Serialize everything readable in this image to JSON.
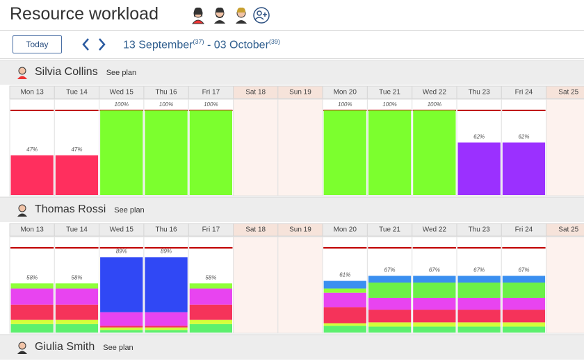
{
  "header": {
    "title": "Resource workload"
  },
  "toolbar": {
    "today": "Today",
    "range_start": "13 September",
    "start_week": "(37)",
    "separator": " - ",
    "range_end": "03 October",
    "end_week": "(39)"
  },
  "capacity": 100,
  "days": [
    "Mon 13",
    "Tue 14",
    "Wed 15",
    "Thu 16",
    "Fri 17",
    "Sat 18",
    "Sun 19",
    "Mon 20",
    "Tue 21",
    "Wed 22",
    "Thu 23",
    "Fri 24",
    "Sat 25"
  ],
  "weekend": [
    false,
    false,
    false,
    false,
    false,
    true,
    true,
    false,
    false,
    false,
    false,
    false,
    true
  ],
  "resources": [
    {
      "name": "Silvia Collins",
      "link": "See plan",
      "loads": [
        {
          "value": 47,
          "label": "47%",
          "segments": [
            {
              "value": 47,
              "color": "#ff2f5e"
            }
          ]
        },
        {
          "value": 47,
          "label": "47%",
          "segments": [
            {
              "value": 47,
              "color": "#ff2f5e"
            }
          ]
        },
        {
          "value": 100,
          "label": "100%",
          "segments": [
            {
              "value": 100,
              "color": "#7cff2e"
            }
          ]
        },
        {
          "value": 100,
          "label": "100%",
          "segments": [
            {
              "value": 100,
              "color": "#7cff2e"
            }
          ]
        },
        {
          "value": 100,
          "label": "100%",
          "segments": [
            {
              "value": 100,
              "color": "#7cff2e"
            }
          ]
        },
        null,
        null,
        {
          "value": 100,
          "label": "100%",
          "segments": [
            {
              "value": 100,
              "color": "#7cff2e"
            }
          ]
        },
        {
          "value": 100,
          "label": "100%",
          "segments": [
            {
              "value": 100,
              "color": "#7cff2e"
            }
          ]
        },
        {
          "value": 100,
          "label": "100%",
          "segments": [
            {
              "value": 100,
              "color": "#7cff2e"
            }
          ]
        },
        {
          "value": 62,
          "label": "62%",
          "segments": [
            {
              "value": 62,
              "color": "#9b30ff"
            }
          ]
        },
        {
          "value": 62,
          "label": "62%",
          "segments": [
            {
              "value": 62,
              "color": "#9b30ff"
            }
          ]
        },
        null
      ]
    },
    {
      "name": "Thomas Rossi",
      "link": "See plan",
      "loads": [
        {
          "value": 58,
          "label": "58%",
          "segments": [
            {
              "value": 10,
              "color": "#5cf06e"
            },
            {
              "value": 5,
              "color": "#d4ff3a"
            },
            {
              "value": 18,
              "color": "#f5335a"
            },
            {
              "value": 19,
              "color": "#e844f0"
            },
            {
              "value": 6,
              "color": "#8fff3a"
            }
          ]
        },
        {
          "value": 58,
          "label": "58%",
          "segments": [
            {
              "value": 10,
              "color": "#5cf06e"
            },
            {
              "value": 5,
              "color": "#d4ff3a"
            },
            {
              "value": 18,
              "color": "#f5335a"
            },
            {
              "value": 19,
              "color": "#e844f0"
            },
            {
              "value": 6,
              "color": "#8fff3a"
            }
          ]
        },
        {
          "value": 89,
          "label": "89%",
          "segments": [
            {
              "value": 3,
              "color": "#5cf06e"
            },
            {
              "value": 3,
              "color": "#d4ff3a"
            },
            {
              "value": 2,
              "color": "#f5335a"
            },
            {
              "value": 16,
              "color": "#e844f0"
            },
            {
              "value": 65,
              "color": "#3048f5"
            }
          ]
        },
        {
          "value": 89,
          "label": "89%",
          "segments": [
            {
              "value": 3,
              "color": "#5cf06e"
            },
            {
              "value": 3,
              "color": "#d4ff3a"
            },
            {
              "value": 2,
              "color": "#f5335a"
            },
            {
              "value": 16,
              "color": "#e844f0"
            },
            {
              "value": 65,
              "color": "#3048f5"
            }
          ]
        },
        {
          "value": 58,
          "label": "58%",
          "segments": [
            {
              "value": 10,
              "color": "#5cf06e"
            },
            {
              "value": 5,
              "color": "#d4ff3a"
            },
            {
              "value": 18,
              "color": "#f5335a"
            },
            {
              "value": 19,
              "color": "#e844f0"
            },
            {
              "value": 6,
              "color": "#8fff3a"
            }
          ]
        },
        null,
        null,
        {
          "value": 61,
          "label": "61%",
          "segments": [
            {
              "value": 8,
              "color": "#5cf06e"
            },
            {
              "value": 3,
              "color": "#d4ff3a"
            },
            {
              "value": 19,
              "color": "#f5335a"
            },
            {
              "value": 17,
              "color": "#e844f0"
            },
            {
              "value": 5,
              "color": "#8fff3a"
            },
            {
              "value": 9,
              "color": "#3a8ff0"
            }
          ]
        },
        {
          "value": 67,
          "label": "67%",
          "segments": [
            {
              "value": 7,
              "color": "#5cf06e"
            },
            {
              "value": 5,
              "color": "#d4ff3a"
            },
            {
              "value": 15,
              "color": "#f5335a"
            },
            {
              "value": 14,
              "color": "#e844f0"
            },
            {
              "value": 18,
              "color": "#6cf048"
            },
            {
              "value": 8,
              "color": "#3a8ff0"
            }
          ]
        },
        {
          "value": 67,
          "label": "67%",
          "segments": [
            {
              "value": 7,
              "color": "#5cf06e"
            },
            {
              "value": 5,
              "color": "#d4ff3a"
            },
            {
              "value": 15,
              "color": "#f5335a"
            },
            {
              "value": 14,
              "color": "#e844f0"
            },
            {
              "value": 18,
              "color": "#6cf048"
            },
            {
              "value": 8,
              "color": "#3a8ff0"
            }
          ]
        },
        {
          "value": 67,
          "label": "67%",
          "segments": [
            {
              "value": 7,
              "color": "#5cf06e"
            },
            {
              "value": 5,
              "color": "#d4ff3a"
            },
            {
              "value": 15,
              "color": "#f5335a"
            },
            {
              "value": 14,
              "color": "#e844f0"
            },
            {
              "value": 18,
              "color": "#6cf048"
            },
            {
              "value": 8,
              "color": "#3a8ff0"
            }
          ]
        },
        {
          "value": 67,
          "label": "67%",
          "segments": [
            {
              "value": 7,
              "color": "#5cf06e"
            },
            {
              "value": 5,
              "color": "#d4ff3a"
            },
            {
              "value": 15,
              "color": "#f5335a"
            },
            {
              "value": 14,
              "color": "#e844f0"
            },
            {
              "value": 18,
              "color": "#6cf048"
            },
            {
              "value": 8,
              "color": "#3a8ff0"
            }
          ]
        },
        null
      ]
    },
    {
      "name": "Giulia Smith",
      "link": "See plan"
    }
  ]
}
